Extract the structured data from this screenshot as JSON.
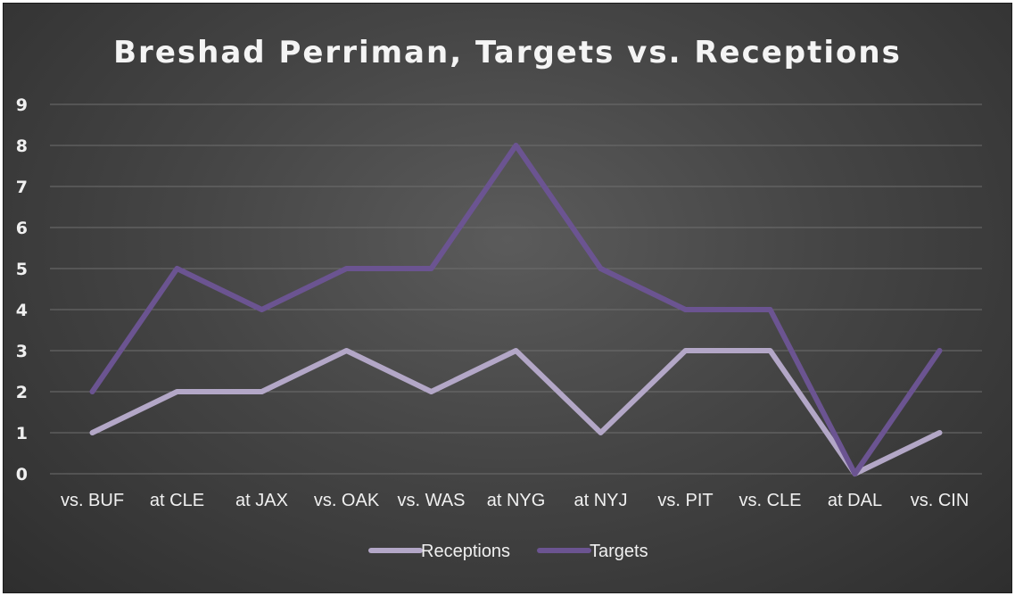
{
  "chart_data": {
    "type": "line",
    "title": "Breshad Perriman, Targets vs. Receptions",
    "xlabel": "",
    "ylabel": "",
    "categories": [
      "vs. BUF",
      "at CLE",
      "at JAX",
      "vs. OAK",
      "vs. WAS",
      "at NYG",
      "at NYJ",
      "vs. PIT",
      "vs. CLE",
      "at DAL",
      "vs. CIN"
    ],
    "series": [
      {
        "name": "Receptions",
        "color": "#b3a7c7",
        "values": [
          1,
          2,
          2,
          3,
          2,
          3,
          1,
          3,
          3,
          0,
          1
        ]
      },
      {
        "name": "Targets",
        "color": "#6b5491",
        "values": [
          2,
          5,
          4,
          5,
          5,
          8,
          5,
          4,
          4,
          0,
          3
        ]
      }
    ],
    "ylim": [
      0,
      9
    ],
    "yticks": [
      "0",
      "1",
      "2",
      "3",
      "4",
      "5",
      "6",
      "7",
      "8",
      "9"
    ],
    "grid": true,
    "legend": "bottom"
  }
}
